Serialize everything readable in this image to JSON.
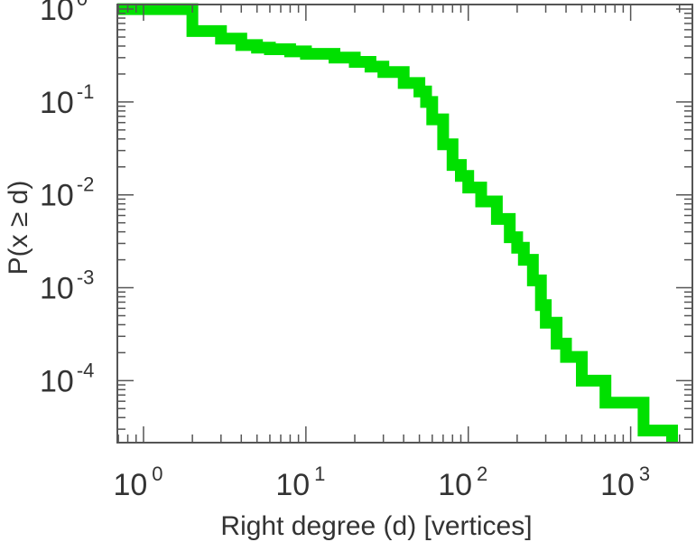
{
  "chart_data": {
    "type": "line",
    "title": "",
    "xlabel": "Right degree (d) [vertices]",
    "ylabel": "P(x ≥ d)",
    "xscale": "log",
    "yscale": "log",
    "xlim": [
      0.69,
      2400
    ],
    "ylim": [
      2.15e-05,
      1.12
    ],
    "grid": false,
    "legend": "none",
    "x_ticks": [
      {
        "base": "10",
        "exp": "0",
        "value": 1
      },
      {
        "base": "10",
        "exp": "1",
        "value": 10
      },
      {
        "base": "10",
        "exp": "2",
        "value": 100
      },
      {
        "base": "10",
        "exp": "3",
        "value": 1000
      }
    ],
    "y_ticks": [
      {
        "base": "10",
        "exp": "0",
        "value": 1
      },
      {
        "base": "10",
        "exp": "-1",
        "value": 0.1
      },
      {
        "base": "10",
        "exp": "-2",
        "value": 0.01
      },
      {
        "base": "10",
        "exp": "-3",
        "value": 0.001
      },
      {
        "base": "10",
        "exp": "-4",
        "value": 0.0001
      }
    ],
    "series": [
      {
        "color": "#00e000",
        "step": true,
        "x": [
          1,
          2,
          3,
          4,
          5,
          6,
          8,
          10,
          15,
          20,
          25,
          30,
          40,
          50,
          55,
          60,
          70,
          80,
          90,
          100,
          120,
          150,
          180,
          200,
          220,
          250,
          280,
          300,
          350,
          400,
          450,
          500,
          600,
          700,
          1000,
          1200,
          1800
        ],
        "y": [
          1.0,
          0.58,
          0.48,
          0.41,
          0.385,
          0.37,
          0.35,
          0.33,
          0.3,
          0.27,
          0.24,
          0.21,
          0.16,
          0.13,
          0.1,
          0.065,
          0.035,
          0.021,
          0.016,
          0.012,
          0.0085,
          0.0055,
          0.0035,
          0.0027,
          0.002,
          0.0012,
          0.00065,
          0.00042,
          0.00025,
          0.00018,
          0.00018,
          0.0001,
          0.0001,
          5.8e-05,
          5.8e-05,
          2.9e-05,
          2.9e-05
        ]
      }
    ]
  }
}
